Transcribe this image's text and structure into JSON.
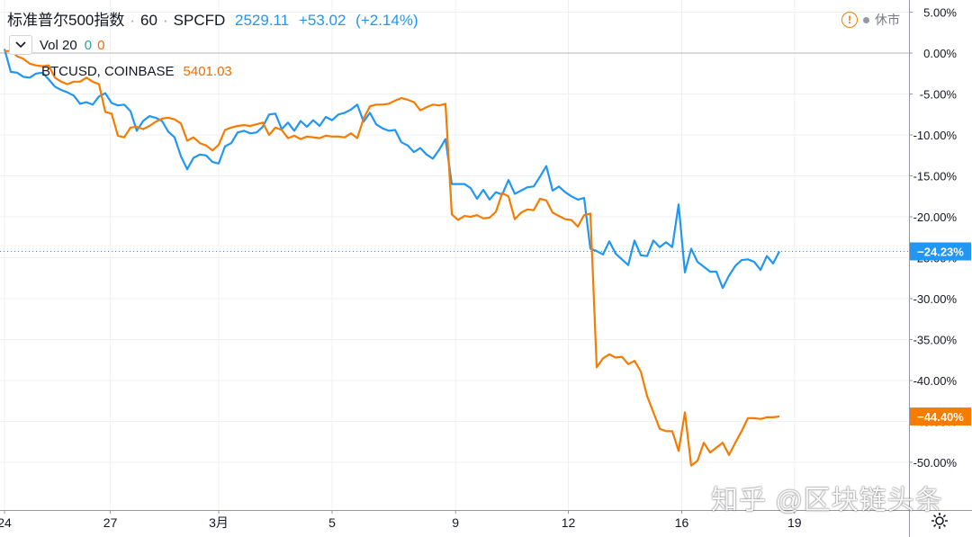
{
  "header": {
    "symbol_name": "标准普尔500指数",
    "interval": "60",
    "exchange": "SPCFD",
    "price": "2529.11",
    "change": "+53.02",
    "change_pct": "(+2.14%)"
  },
  "volume": {
    "label": "Vol 20",
    "v1": "0",
    "v2": "0"
  },
  "compare": {
    "label": "BTCUSD, COINBASE",
    "price": "5401.03"
  },
  "status": {
    "warn_glyph": "!",
    "label": "休市"
  },
  "watermark": "知乎 @区块链头条",
  "chart_data": {
    "type": "line",
    "y_unit": "%",
    "ylim": [
      -54,
      6
    ],
    "y_ticks": [
      "5.00%",
      "0.00%",
      "-5.00%",
      "-10.00%",
      "-15.00%",
      "-20.00%",
      "-25.00%",
      "-30.00%",
      "-35.00%",
      "-40.00%",
      "-45.00%",
      "-50.00%"
    ],
    "y_tick_values": [
      5,
      0,
      -5,
      -10,
      -15,
      -20,
      -25,
      -30,
      -35,
      -40,
      -45,
      -50
    ],
    "x_ticks": [
      {
        "label": "24",
        "t": 0
      },
      {
        "label": "27",
        "t": 16.8
      },
      {
        "label": "3月",
        "t": 34
      },
      {
        "label": "5",
        "t": 52
      },
      {
        "label": "9",
        "t": 71.6
      },
      {
        "label": "12",
        "t": 89.5
      },
      {
        "label": "16",
        "t": 107.5
      },
      {
        "label": "19",
        "t": 125.4
      }
    ],
    "x_range": [
      0,
      131
    ],
    "last_value_labels": [
      {
        "series": "标准普尔500指数",
        "text": "−24.23%",
        "value": -24.23,
        "color": "#2196f3"
      },
      {
        "series": "BTCUSD",
        "text": "−44.40%",
        "value": -44.4,
        "color": "#f57c00"
      }
    ],
    "series": [
      {
        "name": "标准普尔500指数",
        "color": "#2196f3",
        "points": [
          [
            0,
            0.5
          ],
          [
            1,
            -2.3
          ],
          [
            2,
            -2.4
          ],
          [
            3,
            -2.9
          ],
          [
            4,
            -3.0
          ],
          [
            5,
            -2.5
          ],
          [
            6,
            -2.4
          ],
          [
            7,
            -3.2
          ],
          [
            8,
            -4.1
          ],
          [
            9,
            -4.5
          ],
          [
            10,
            -4.8
          ],
          [
            11,
            -5.2
          ],
          [
            12,
            -6.2
          ],
          [
            13,
            -6.0
          ],
          [
            14,
            -6.3
          ],
          [
            15,
            -5.3
          ],
          [
            16,
            -4.9
          ],
          [
            17,
            -6.1
          ],
          [
            18,
            -6.4
          ],
          [
            19,
            -6.3
          ],
          [
            20,
            -7.1
          ],
          [
            21,
            -9.5
          ],
          [
            22,
            -8.3
          ],
          [
            23,
            -7.7
          ],
          [
            24,
            -7.9
          ],
          [
            25,
            -8.3
          ],
          [
            26,
            -9.6
          ],
          [
            27,
            -10.3
          ],
          [
            28,
            -12.6
          ],
          [
            29,
            -14.2
          ],
          [
            30,
            -12.8
          ],
          [
            31,
            -12.4
          ],
          [
            32,
            -12.5
          ],
          [
            33,
            -13.3
          ],
          [
            34,
            -13.5
          ],
          [
            35,
            -11.4
          ],
          [
            36,
            -11.0
          ],
          [
            37,
            -9.7
          ],
          [
            38,
            -9.5
          ],
          [
            39,
            -9.8
          ],
          [
            40,
            -9.7
          ],
          [
            41,
            -9.0
          ],
          [
            42,
            -7.5
          ],
          [
            43,
            -7.4
          ],
          [
            44,
            -9.3
          ],
          [
            45,
            -8.5
          ],
          [
            46,
            -9.5
          ],
          [
            47,
            -8.3
          ],
          [
            48,
            -9.0
          ],
          [
            49,
            -8.2
          ],
          [
            50,
            -8.9
          ],
          [
            51,
            -7.8
          ],
          [
            52,
            -8.2
          ],
          [
            53,
            -7.5
          ],
          [
            54,
            -7.3
          ],
          [
            55,
            -6.9
          ],
          [
            56,
            -6.3
          ],
          [
            57,
            -8.4
          ],
          [
            58,
            -7.3
          ],
          [
            59,
            -8.7
          ],
          [
            60,
            -9.2
          ],
          [
            61,
            -9.5
          ],
          [
            62,
            -9.4
          ],
          [
            63,
            -10.9
          ],
          [
            64,
            -11.3
          ],
          [
            65,
            -12.1
          ],
          [
            66,
            -11.6
          ],
          [
            67,
            -12.4
          ],
          [
            68,
            -12.9
          ],
          [
            69,
            -11.8
          ],
          [
            70,
            -10.5
          ],
          [
            71,
            -16.0
          ],
          [
            72,
            -16.0
          ],
          [
            73,
            -16.0
          ],
          [
            74,
            -16.5
          ],
          [
            75,
            -17.8
          ],
          [
            76,
            -16.7
          ],
          [
            77,
            -17.9
          ],
          [
            78,
            -17.0
          ],
          [
            79,
            -17.3
          ],
          [
            80,
            -15.5
          ],
          [
            81,
            -17.2
          ],
          [
            82,
            -16.8
          ],
          [
            83,
            -16.4
          ],
          [
            84,
            -16.3
          ],
          [
            85,
            -15.1
          ],
          [
            86,
            -13.8
          ],
          [
            87,
            -16.8
          ],
          [
            88,
            -16.3
          ],
          [
            89,
            -17.0
          ],
          [
            90,
            -17.5
          ],
          [
            91,
            -17.9
          ],
          [
            92,
            -17.7
          ],
          [
            93,
            -23.9
          ],
          [
            94,
            -24.2
          ],
          [
            95,
            -24.6
          ],
          [
            96,
            -23.0
          ],
          [
            97,
            -24.5
          ],
          [
            98,
            -25.2
          ],
          [
            99,
            -25.9
          ],
          [
            100,
            -22.9
          ],
          [
            101,
            -24.7
          ],
          [
            102,
            -24.8
          ],
          [
            103,
            -22.9
          ],
          [
            104,
            -23.7
          ],
          [
            105,
            -23.1
          ],
          [
            106,
            -23.7
          ],
          [
            107,
            -18.5
          ],
          [
            108,
            -26.8
          ],
          [
            109,
            -23.9
          ],
          [
            110,
            -25.5
          ],
          [
            111,
            -26.1
          ],
          [
            112,
            -26.7
          ],
          [
            113,
            -26.7
          ],
          [
            114,
            -28.7
          ],
          [
            115,
            -27.2
          ],
          [
            116,
            -26.0
          ],
          [
            117,
            -25.3
          ],
          [
            118,
            -25.2
          ],
          [
            119,
            -25.5
          ],
          [
            120,
            -26.5
          ],
          [
            121,
            -24.8
          ],
          [
            122,
            -25.7
          ],
          [
            123,
            -24.23
          ]
        ]
      },
      {
        "name": "BTCUSD",
        "color": "#f57c00",
        "points": [
          [
            0,
            0.2
          ],
          [
            1,
            0.3
          ],
          [
            2,
            -0.4
          ],
          [
            3,
            -0.7
          ],
          [
            4,
            -1.3
          ],
          [
            5,
            -1.5
          ],
          [
            6,
            -1.6
          ],
          [
            7,
            -1.5
          ],
          [
            8,
            -3.0
          ],
          [
            9,
            -3.5
          ],
          [
            10,
            -3.8
          ],
          [
            11,
            -3.5
          ],
          [
            12,
            -3.5
          ],
          [
            13,
            -3.0
          ],
          [
            14,
            -3.5
          ],
          [
            15,
            -3.8
          ],
          [
            16,
            -7.2
          ],
          [
            17,
            -7.4
          ],
          [
            18,
            -10.1
          ],
          [
            19,
            -10.3
          ],
          [
            20,
            -9.1
          ],
          [
            21,
            -9.0
          ],
          [
            22,
            -9.3
          ],
          [
            23,
            -8.9
          ],
          [
            24,
            -8.4
          ],
          [
            25,
            -8.0
          ],
          [
            26,
            -7.9
          ],
          [
            27,
            -8.1
          ],
          [
            28,
            -8.6
          ],
          [
            29,
            -10.7
          ],
          [
            30,
            -10.3
          ],
          [
            31,
            -11.0
          ],
          [
            32,
            -11.3
          ],
          [
            33,
            -11.9
          ],
          [
            34,
            -11.2
          ],
          [
            35,
            -9.4
          ],
          [
            36,
            -9.1
          ],
          [
            37,
            -8.9
          ],
          [
            38,
            -8.8
          ],
          [
            39,
            -8.9
          ],
          [
            40,
            -8.7
          ],
          [
            41,
            -8.5
          ],
          [
            42,
            -10.0
          ],
          [
            43,
            -9.1
          ],
          [
            44,
            -9.4
          ],
          [
            45,
            -10.4
          ],
          [
            46,
            -10.1
          ],
          [
            47,
            -10.5
          ],
          [
            48,
            -10.2
          ],
          [
            49,
            -10.3
          ],
          [
            50,
            -10.4
          ],
          [
            51,
            -10.1
          ],
          [
            52,
            -10.2
          ],
          [
            53,
            -10.2
          ],
          [
            54,
            -10.3
          ],
          [
            55,
            -9.8
          ],
          [
            56,
            -10.4
          ],
          [
            57,
            -8.0
          ],
          [
            58,
            -6.5
          ],
          [
            59,
            -6.3
          ],
          [
            60,
            -6.3
          ],
          [
            61,
            -6.2
          ],
          [
            62,
            -5.8
          ],
          [
            63,
            -5.5
          ],
          [
            64,
            -5.7
          ],
          [
            65,
            -6.0
          ],
          [
            66,
            -7.0
          ],
          [
            67,
            -6.6
          ],
          [
            68,
            -6.3
          ],
          [
            69,
            -6.4
          ],
          [
            70,
            -6.2
          ],
          [
            71,
            -19.7
          ],
          [
            72,
            -20.4
          ],
          [
            73,
            -19.9
          ],
          [
            74,
            -20.0
          ],
          [
            75,
            -19.8
          ],
          [
            76,
            -20.2
          ],
          [
            77,
            -20.1
          ],
          [
            78,
            -19.4
          ],
          [
            79,
            -17.1
          ],
          [
            80,
            -17.5
          ],
          [
            81,
            -20.3
          ],
          [
            82,
            -19.5
          ],
          [
            83,
            -19.1
          ],
          [
            84,
            -19.2
          ],
          [
            85,
            -17.8
          ],
          [
            86,
            -18.0
          ],
          [
            87,
            -19.5
          ],
          [
            88,
            -19.9
          ],
          [
            89,
            -20.3
          ],
          [
            90,
            -20.4
          ],
          [
            91,
            -21.2
          ],
          [
            92,
            -19.8
          ],
          [
            93,
            -19.6
          ],
          [
            94,
            -38.4
          ],
          [
            95,
            -37.3
          ],
          [
            96,
            -36.8
          ],
          [
            97,
            -37.2
          ],
          [
            98,
            -37.1
          ],
          [
            99,
            -38.0
          ],
          [
            100,
            -37.6
          ],
          [
            101,
            -38.9
          ],
          [
            102,
            -41.9
          ],
          [
            103,
            -43.9
          ],
          [
            104,
            -45.9
          ],
          [
            105,
            -46.2
          ],
          [
            106,
            -46.2
          ],
          [
            107,
            -48.6
          ],
          [
            108,
            -43.9
          ],
          [
            109,
            -50.4
          ],
          [
            110,
            -49.8
          ],
          [
            111,
            -47.6
          ],
          [
            112,
            -48.8
          ],
          [
            113,
            -48.2
          ],
          [
            114,
            -47.6
          ],
          [
            115,
            -49.1
          ],
          [
            116,
            -47.6
          ],
          [
            117,
            -46.2
          ],
          [
            118,
            -44.6
          ],
          [
            119,
            -44.6
          ],
          [
            120,
            -44.7
          ],
          [
            121,
            -44.5
          ],
          [
            122,
            -44.5
          ],
          [
            123,
            -44.4
          ]
        ]
      }
    ]
  }
}
